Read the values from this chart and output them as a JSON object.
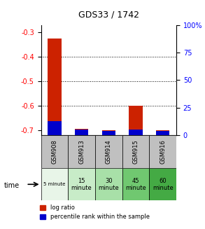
{
  "title": "GDS33 / 1742",
  "samples": [
    "GSM908",
    "GSM913",
    "GSM914",
    "GSM915",
    "GSM916"
  ],
  "time_labels": [
    "5 minute",
    "15\nminute",
    "30\nminute",
    "45\nminute",
    "60\nminute"
  ],
  "time_colors": [
    "#e8f5e8",
    "#c8ecc8",
    "#a8e0a8",
    "#70c870",
    "#44aa44"
  ],
  "log_ratio": [
    -0.325,
    -0.695,
    -0.7,
    -0.6,
    -0.7
  ],
  "percentile_rank": [
    13,
    5,
    4,
    5,
    4
  ],
  "ylim_left": [
    -0.72,
    -0.27
  ],
  "ylim_right": [
    0,
    100
  ],
  "yticks_left": [
    -0.7,
    -0.6,
    -0.5,
    -0.4,
    -0.3
  ],
  "yticks_right": [
    0,
    25,
    50,
    75,
    100
  ],
  "yticklabels_right": [
    "0",
    "25",
    "50",
    "75",
    "100%"
  ],
  "bar_color_red": "#cc2200",
  "bar_color_blue": "#0000cc",
  "bg_color": "#ffffff",
  "sample_bg": "#c0c0c0",
  "bar_width": 0.5
}
